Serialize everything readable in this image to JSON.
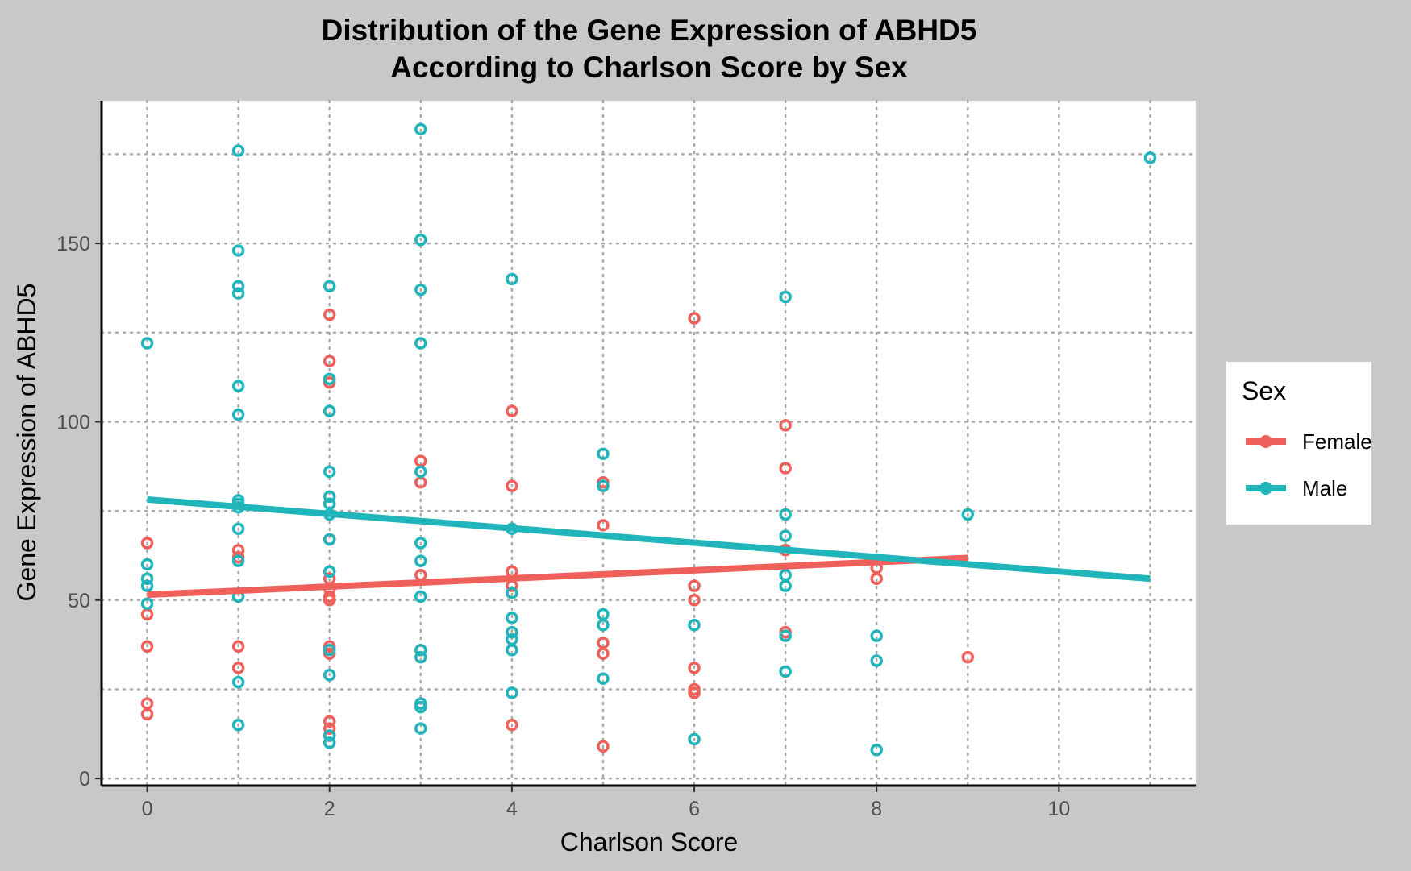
{
  "colors": {
    "background": "#c8c8c8",
    "panel": "#ffffff",
    "grid": "#aaaaaa",
    "axis": "#000000",
    "female": "#F0605A",
    "male": "#1FB5BA"
  },
  "chart_data": {
    "type": "scatter",
    "title": "Distribution of the Gene Expression of ABHD5",
    "subtitle": "According to Charlson Score by Sex",
    "xlabel": "Charlson Score",
    "ylabel": "Gene Expression of ABHD5",
    "xlim": [
      -0.5,
      11.5
    ],
    "ylim": [
      -2,
      190
    ],
    "x_ticks": [
      0,
      2,
      4,
      6,
      8,
      10
    ],
    "x_tick_labels": [
      "0",
      "2",
      "4",
      "6",
      "8",
      "10"
    ],
    "x_minor_grid": [
      1,
      3,
      5,
      7,
      9,
      11
    ],
    "y_ticks": [
      0,
      50,
      100,
      150
    ],
    "y_tick_labels": [
      "0",
      "50",
      "100",
      "150"
    ],
    "y_minor_grid": [
      25,
      75,
      125,
      175
    ],
    "grid": true,
    "grid_style": "dotted",
    "legend": {
      "title": "Sex",
      "position": "right",
      "entries": [
        "Female",
        "Male"
      ]
    },
    "series": [
      {
        "name": "Female",
        "color": "#F0605A",
        "points": [
          [
            0,
            66
          ],
          [
            0,
            46
          ],
          [
            0,
            37
          ],
          [
            0,
            21
          ],
          [
            0,
            18
          ],
          [
            1,
            64
          ],
          [
            1,
            62
          ],
          [
            1,
            37
          ],
          [
            1,
            31
          ],
          [
            2,
            130
          ],
          [
            2,
            117
          ],
          [
            2,
            111
          ],
          [
            2,
            67
          ],
          [
            2,
            56
          ],
          [
            2,
            53
          ],
          [
            2,
            51
          ],
          [
            2,
            50
          ],
          [
            2,
            37
          ],
          [
            2,
            35
          ],
          [
            2,
            16
          ],
          [
            2,
            14
          ],
          [
            2,
            12
          ],
          [
            3,
            89
          ],
          [
            3,
            83
          ],
          [
            3,
            57
          ],
          [
            4,
            103
          ],
          [
            4,
            82
          ],
          [
            4,
            58
          ],
          [
            4,
            54
          ],
          [
            4,
            52
          ],
          [
            4,
            15
          ],
          [
            5,
            83
          ],
          [
            5,
            82
          ],
          [
            5,
            71
          ],
          [
            5,
            38
          ],
          [
            5,
            35
          ],
          [
            5,
            9
          ],
          [
            6,
            129
          ],
          [
            6,
            54
          ],
          [
            6,
            50
          ],
          [
            6,
            31
          ],
          [
            6,
            25
          ],
          [
            6,
            24
          ],
          [
            7,
            99
          ],
          [
            7,
            87
          ],
          [
            7,
            64
          ],
          [
            7,
            41
          ],
          [
            8,
            59
          ],
          [
            8,
            56
          ],
          [
            9,
            34
          ]
        ],
        "trend": {
          "x": [
            0,
            9
          ],
          "y": [
            51.5,
            61.8
          ]
        }
      },
      {
        "name": "Male",
        "color": "#1FB5BA",
        "points": [
          [
            0,
            122
          ],
          [
            0,
            60
          ],
          [
            0,
            56
          ],
          [
            0,
            54
          ],
          [
            0,
            49
          ],
          [
            1,
            176
          ],
          [
            1,
            148
          ],
          [
            1,
            138
          ],
          [
            1,
            136
          ],
          [
            1,
            110
          ],
          [
            1,
            102
          ],
          [
            1,
            78
          ],
          [
            1,
            77
          ],
          [
            1,
            76
          ],
          [
            1,
            70
          ],
          [
            1,
            61
          ],
          [
            1,
            51
          ],
          [
            1,
            27
          ],
          [
            1,
            15
          ],
          [
            2,
            138
          ],
          [
            2,
            112
          ],
          [
            2,
            103
          ],
          [
            2,
            86
          ],
          [
            2,
            79
          ],
          [
            2,
            77
          ],
          [
            2,
            74
          ],
          [
            2,
            67
          ],
          [
            2,
            58
          ],
          [
            2,
            36
          ],
          [
            2,
            29
          ],
          [
            2,
            12
          ],
          [
            2,
            10
          ],
          [
            3,
            182
          ],
          [
            3,
            151
          ],
          [
            3,
            137
          ],
          [
            3,
            122
          ],
          [
            3,
            86
          ],
          [
            3,
            66
          ],
          [
            3,
            61
          ],
          [
            3,
            51
          ],
          [
            3,
            36
          ],
          [
            3,
            34
          ],
          [
            3,
            21
          ],
          [
            3,
            20
          ],
          [
            3,
            14
          ],
          [
            4,
            140
          ],
          [
            4,
            70
          ],
          [
            4,
            52
          ],
          [
            4,
            45
          ],
          [
            4,
            41
          ],
          [
            4,
            39
          ],
          [
            4,
            36
          ],
          [
            4,
            24
          ],
          [
            5,
            91
          ],
          [
            5,
            82
          ],
          [
            5,
            46
          ],
          [
            5,
            43
          ],
          [
            5,
            28
          ],
          [
            6,
            43
          ],
          [
            6,
            11
          ],
          [
            7,
            135
          ],
          [
            7,
            74
          ],
          [
            7,
            68
          ],
          [
            7,
            57
          ],
          [
            7,
            54
          ],
          [
            7,
            40
          ],
          [
            7,
            30
          ],
          [
            8,
            40
          ],
          [
            8,
            33
          ],
          [
            8,
            8
          ],
          [
            9,
            74
          ],
          [
            11,
            174
          ]
        ],
        "trend": {
          "x": [
            0,
            11
          ],
          "y": [
            78.2,
            56.0
          ]
        }
      }
    ]
  }
}
